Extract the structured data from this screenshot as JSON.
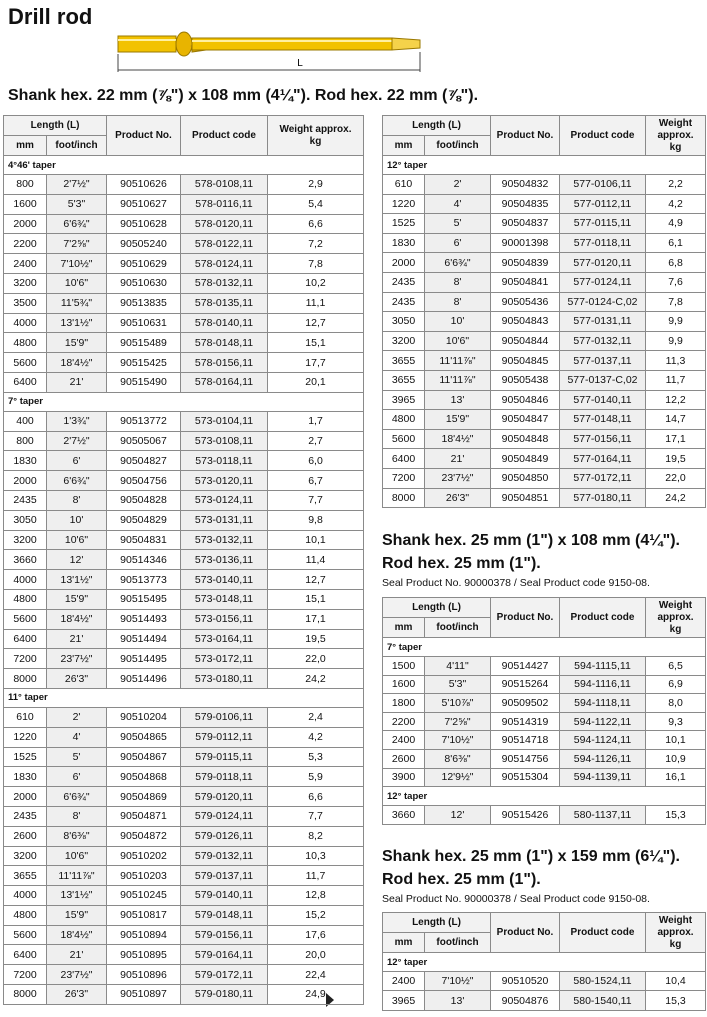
{
  "title": "Drill rod",
  "diagram": {
    "dimension_label": "L"
  },
  "sections": [
    {
      "heading_lines": [
        "Shank hex. 22 mm (⅞\") x 108 mm (4¼\"). Rod hex. 22 mm (⅞\")."
      ],
      "tables": [
        {
          "header": {
            "length": "Length (L)",
            "mm": "mm",
            "foot_inch": "foot/inch",
            "product_no": "Product No.",
            "product_code": "Product code",
            "weight": "Weight approx. kg"
          },
          "groups": [
            {
              "label": "4°46' taper",
              "rows": [
                [
                  "800",
                  "2'7½\"",
                  "90510626",
                  "578-0108,11",
                  "2,9"
                ],
                [
                  "1600",
                  "5'3\"",
                  "90510627",
                  "578-0116,11",
                  "5,4"
                ],
                [
                  "2000",
                  "6'6¾\"",
                  "90510628",
                  "578-0120,11",
                  "6,6"
                ],
                [
                  "2200",
                  "7'2⅝\"",
                  "90505240",
                  "578-0122,11",
                  "7,2"
                ],
                [
                  "2400",
                  "7'10½\"",
                  "90510629",
                  "578-0124,11",
                  "7,8"
                ],
                [
                  "3200",
                  "10'6\"",
                  "90510630",
                  "578-0132,11",
                  "10,2"
                ],
                [
                  "3500",
                  "11'5¾\"",
                  "90513835",
                  "578-0135,11",
                  "11,1"
                ],
                [
                  "4000",
                  "13'1½\"",
                  "90510631",
                  "578-0140,11",
                  "12,7"
                ],
                [
                  "4800",
                  "15'9\"",
                  "90515489",
                  "578-0148,11",
                  "15,1"
                ],
                [
                  "5600",
                  "18'4½\"",
                  "90515425",
                  "578-0156,11",
                  "17,7"
                ],
                [
                  "6400",
                  "21'",
                  "90515490",
                  "578-0164,11",
                  "20,1"
                ]
              ]
            },
            {
              "label": "7° taper",
              "rows": [
                [
                  "400",
                  "1'3¾\"",
                  "90513772",
                  "573-0104,11",
                  "1,7"
                ],
                [
                  "800",
                  "2'7½\"",
                  "90505067",
                  "573-0108,11",
                  "2,7"
                ],
                [
                  "1830",
                  "6'",
                  "90504827",
                  "573-0118,11",
                  "6,0"
                ],
                [
                  "2000",
                  "6'6¾\"",
                  "90504756",
                  "573-0120,11",
                  "6,7"
                ],
                [
                  "2435",
                  "8'",
                  "90504828",
                  "573-0124,11",
                  "7,7"
                ],
                [
                  "3050",
                  "10'",
                  "90504829",
                  "573-0131,11",
                  "9,8"
                ],
                [
                  "3200",
                  "10'6\"",
                  "90504831",
                  "573-0132,11",
                  "10,1"
                ],
                [
                  "3660",
                  "12'",
                  "90514346",
                  "573-0136,11",
                  "11,4"
                ],
                [
                  "4000",
                  "13'1½\"",
                  "90513773",
                  "573-0140,11",
                  "12,7"
                ],
                [
                  "4800",
                  "15'9\"",
                  "90515495",
                  "573-0148,11",
                  "15,1"
                ],
                [
                  "5600",
                  "18'4½\"",
                  "90514493",
                  "573-0156,11",
                  "17,1"
                ],
                [
                  "6400",
                  "21'",
                  "90514494",
                  "573-0164,11",
                  "19,5"
                ],
                [
                  "7200",
                  "23'7½\"",
                  "90514495",
                  "573-0172,11",
                  "22,0"
                ],
                [
                  "8000",
                  "26'3\"",
                  "90514496",
                  "573-0180,11",
                  "24,2"
                ]
              ]
            },
            {
              "label": "11° taper",
              "rows": [
                [
                  "610",
                  "2'",
                  "90510204",
                  "579-0106,11",
                  "2,4"
                ],
                [
                  "1220",
                  "4'",
                  "90504865",
                  "579-0112,11",
                  "4,2"
                ],
                [
                  "1525",
                  "5'",
                  "90504867",
                  "579-0115,11",
                  "5,3"
                ],
                [
                  "1830",
                  "6'",
                  "90504868",
                  "579-0118,11",
                  "5,9"
                ],
                [
                  "2000",
                  "6'6¾\"",
                  "90504869",
                  "579-0120,11",
                  "6,6"
                ],
                [
                  "2435",
                  "8'",
                  "90504871",
                  "579-0124,11",
                  "7,7"
                ],
                [
                  "2600",
                  "8'6⅜\"",
                  "90504872",
                  "579-0126,11",
                  "8,2"
                ],
                [
                  "3200",
                  "10'6\"",
                  "90510202",
                  "579-0132,11",
                  "10,3"
                ],
                [
                  "3655",
                  "11'11⅞\"",
                  "90510203",
                  "579-0137,11",
                  "11,7"
                ],
                [
                  "4000",
                  "13'1½\"",
                  "90510245",
                  "579-0140,11",
                  "12,8"
                ],
                [
                  "4800",
                  "15'9\"",
                  "90510817",
                  "579-0148,11",
                  "15,2"
                ],
                [
                  "5600",
                  "18'4½\"",
                  "90510894",
                  "579-0156,11",
                  "17,6"
                ],
                [
                  "6400",
                  "21'",
                  "90510895",
                  "579-0164,11",
                  "20,0"
                ],
                [
                  "7200",
                  "23'7½\"",
                  "90510896",
                  "579-0172,11",
                  "22,4"
                ],
                [
                  "8000",
                  "26'3\"",
                  "90510897",
                  "579-0180,11",
                  "24,9"
                ]
              ]
            }
          ]
        },
        {
          "header": {
            "length": "Length (L)",
            "mm": "mm",
            "foot_inch": "foot/inch",
            "product_no": "Product No.",
            "product_code": "Product code",
            "weight": "Weight approx. kg"
          },
          "groups": [
            {
              "label": "12° taper",
              "rows": [
                [
                  "610",
                  "2'",
                  "90504832",
                  "577-0106,11",
                  "2,2"
                ],
                [
                  "1220",
                  "4'",
                  "90504835",
                  "577-0112,11",
                  "4,2"
                ],
                [
                  "1525",
                  "5'",
                  "90504837",
                  "577-0115,11",
                  "4,9"
                ],
                [
                  "1830",
                  "6'",
                  "90001398",
                  "577-0118,11",
                  "6,1"
                ],
                [
                  "2000",
                  "6'6¾\"",
                  "90504839",
                  "577-0120,11",
                  "6,8"
                ],
                [
                  "2435",
                  "8'",
                  "90504841",
                  "577-0124,11",
                  "7,6"
                ],
                [
                  "2435",
                  "8'",
                  "90505436",
                  "577-0124-C,02",
                  "7,8"
                ],
                [
                  "3050",
                  "10'",
                  "90504843",
                  "577-0131,11",
                  "9,9"
                ],
                [
                  "3200",
                  "10'6\"",
                  "90504844",
                  "577-0132,11",
                  "9,9"
                ],
                [
                  "3655",
                  "11'11⅞\"",
                  "90504845",
                  "577-0137,11",
                  "11,3"
                ],
                [
                  "3655",
                  "11'11⅞\"",
                  "90505438",
                  "577-0137-C,02",
                  "11,7"
                ],
                [
                  "3965",
                  "13'",
                  "90504846",
                  "577-0140,11",
                  "12,2"
                ],
                [
                  "4800",
                  "15'9\"",
                  "90504847",
                  "577-0148,11",
                  "14,7"
                ],
                [
                  "5600",
                  "18'4½\"",
                  "90504848",
                  "577-0156,11",
                  "17,1"
                ],
                [
                  "6400",
                  "21'",
                  "90504849",
                  "577-0164,11",
                  "19,5"
                ],
                [
                  "7200",
                  "23'7½\"",
                  "90504850",
                  "577-0172,11",
                  "22,0"
                ],
                [
                  "8000",
                  "26'3\"",
                  "90504851",
                  "577-0180,11",
                  "24,2"
                ]
              ]
            }
          ]
        }
      ]
    },
    {
      "heading_lines": [
        "Shank hex. 25 mm (1\") x 108 mm (4¼\").",
        "Rod hex. 25 mm (1\")."
      ],
      "note": "Seal Product No. 90000378 / Seal Product code 9150-08.",
      "tables": [
        {
          "header": {
            "length": "Length (L)",
            "mm": "mm",
            "foot_inch": "foot/inch",
            "product_no": "Product No.",
            "product_code": "Product code",
            "weight": "Weight approx. kg"
          },
          "groups": [
            {
              "label": "7° taper",
              "rows": [
                [
                  "1500",
                  "4'11\"",
                  "90514427",
                  "594-1115,11",
                  "6,5"
                ],
                [
                  "1600",
                  "5'3\"",
                  "90515264",
                  "594-1116,11",
                  "6,9"
                ],
                [
                  "1800",
                  "5'10⅞\"",
                  "90509502",
                  "594-1118,11",
                  "8,0"
                ],
                [
                  "2200",
                  "7'2⅝\"",
                  "90514319",
                  "594-1122,11",
                  "9,3"
                ],
                [
                  "2400",
                  "7'10½\"",
                  "90514718",
                  "594-1124,11",
                  "10,1"
                ],
                [
                  "2600",
                  "8'6⅜\"",
                  "90514756",
                  "594-1126,11",
                  "10,9"
                ],
                [
                  "3900",
                  "12'9½\"",
                  "90515304",
                  "594-1139,11",
                  "16,1"
                ]
              ]
            },
            {
              "label": "12° taper",
              "rows": [
                [
                  "3660",
                  "12'",
                  "90515426",
                  "580-1137,11",
                  "15,3"
                ]
              ]
            }
          ]
        }
      ]
    },
    {
      "heading_lines": [
        "Shank hex. 25 mm (1\") x 159 mm (6¼\").",
        "Rod hex. 25 mm (1\")."
      ],
      "note": "Seal Product No. 90000378 / Seal Product code 9150-08.",
      "tables": [
        {
          "header": {
            "length": "Length (L)",
            "mm": "mm",
            "foot_inch": "foot/inch",
            "product_no": "Product No.",
            "product_code": "Product code",
            "weight": "Weight approx. kg"
          },
          "groups": [
            {
              "label": "12° taper",
              "rows": [
                [
                  "2400",
                  "7'10½\"",
                  "90510520",
                  "580-1524,11",
                  "10,4"
                ],
                [
                  "3965",
                  "13'",
                  "90504876",
                  "580-1540,11",
                  "15,3"
                ]
              ]
            }
          ]
        }
      ]
    }
  ]
}
